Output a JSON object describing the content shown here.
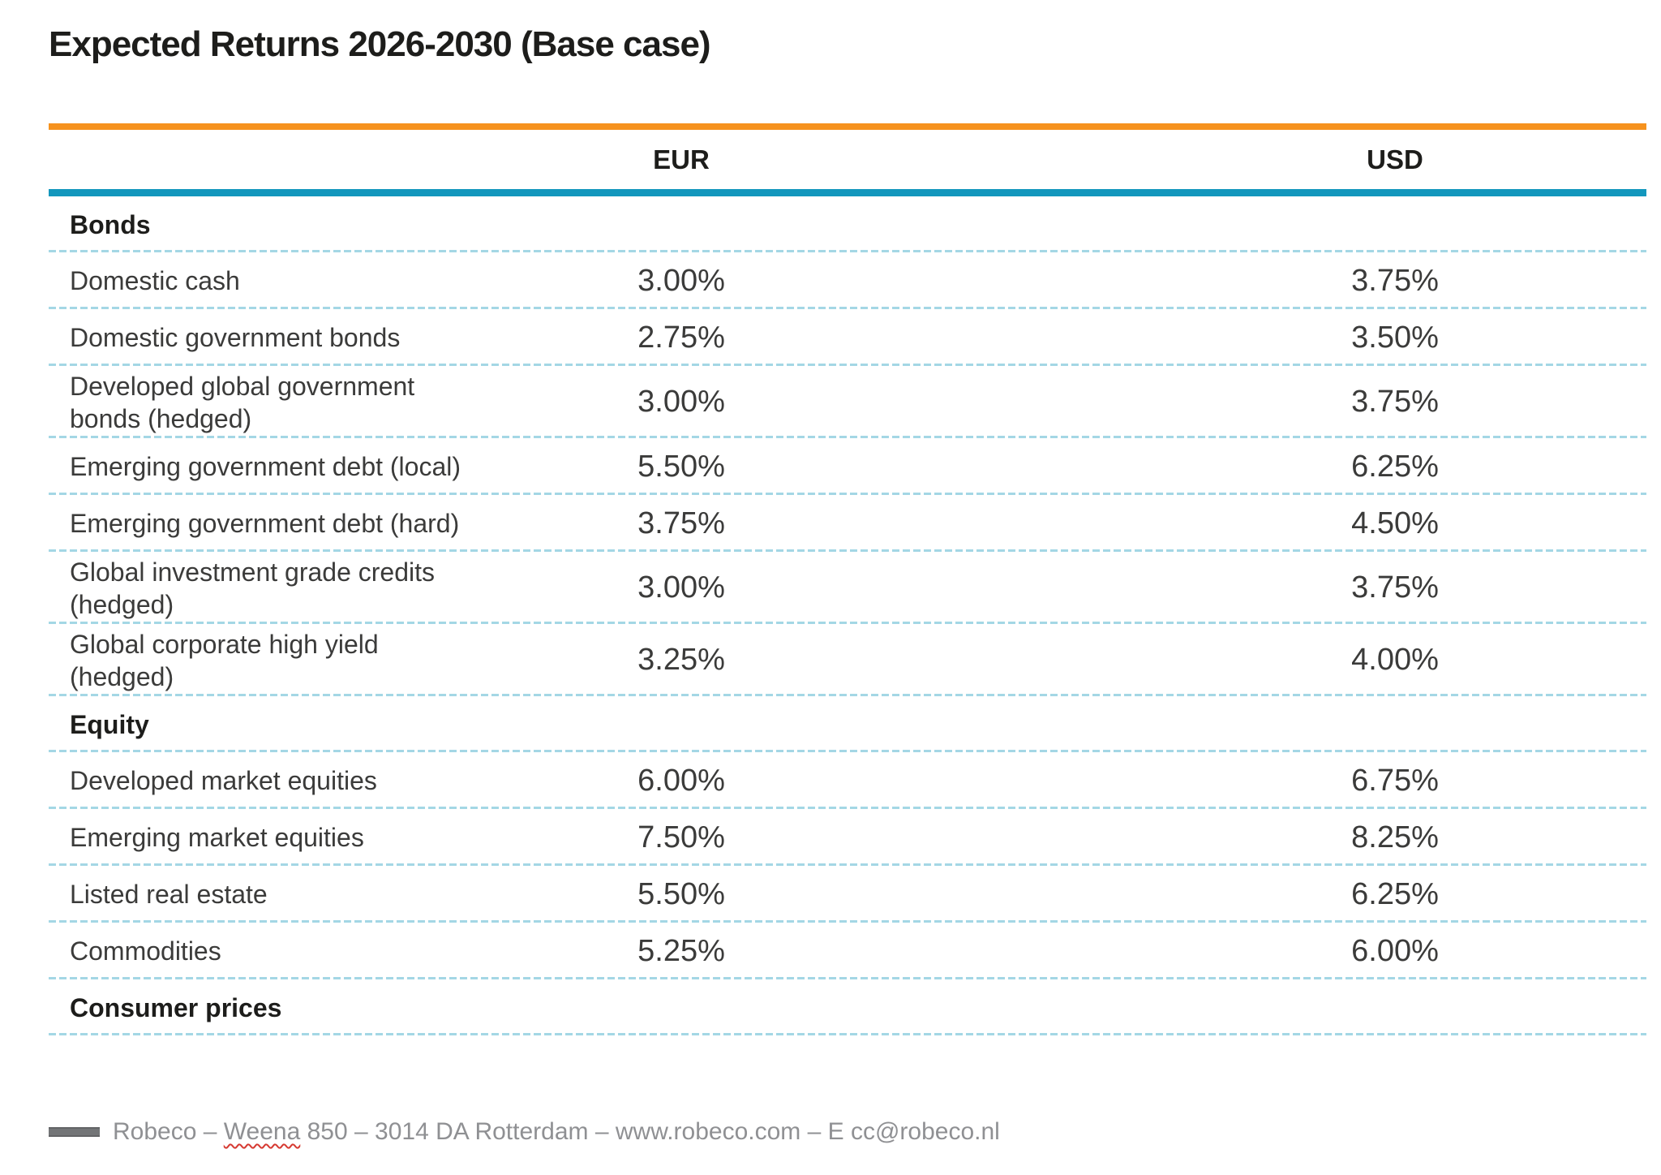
{
  "title": "Expected Returns 2026-2030 (Base case)",
  "columns": {
    "eur": "EUR",
    "usd": "USD"
  },
  "table": {
    "rows": [
      {
        "type": "section",
        "label": "Bonds"
      },
      {
        "type": "data",
        "label": "Domestic cash",
        "eur": "3.00%",
        "usd": "3.75%"
      },
      {
        "type": "data",
        "label": "Domestic government bonds",
        "eur": "2.75%",
        "usd": "3.50%"
      },
      {
        "type": "data",
        "label": "Developed global government\nbonds (hedged)",
        "eur": "3.00%",
        "usd": "3.75%"
      },
      {
        "type": "data",
        "label": "Emerging government debt (local)",
        "eur": "5.50%",
        "usd": "6.25%"
      },
      {
        "type": "data",
        "label": "Emerging government debt (hard)",
        "eur": "3.75%",
        "usd": "4.50%"
      },
      {
        "type": "data",
        "label": "Global investment grade credits\n(hedged)",
        "eur": "3.00%",
        "usd": "3.75%"
      },
      {
        "type": "data",
        "label": "Global corporate high yield\n(hedged)",
        "eur": "3.25%",
        "usd": "4.00%"
      },
      {
        "type": "section",
        "label": "Equity"
      },
      {
        "type": "data",
        "label": "Developed market equities",
        "eur": "6.00%",
        "usd": "6.75%"
      },
      {
        "type": "data",
        "label": "Emerging market equities",
        "eur": "7.50%",
        "usd": "8.25%"
      },
      {
        "type": "data",
        "label": "Listed real estate",
        "eur": "5.50%",
        "usd": "6.25%"
      },
      {
        "type": "data",
        "label": "Commodities",
        "eur": "5.25%",
        "usd": "6.00%"
      },
      {
        "type": "section",
        "label": "Consumer prices"
      }
    ]
  },
  "footer": {
    "prefix": "Robeco – ",
    "misspelled_word": "Weena",
    "suffix": " 850 – 3014 DA Rotterdam – www.robeco.com – E cc@robeco.nl"
  },
  "colors": {
    "accent_orange": "#f6921e",
    "accent_teal": "#1397bd",
    "row_divider": "#a4d7e5",
    "footer_text": "#8f9093",
    "spellcheck_red": "#d63a32"
  }
}
